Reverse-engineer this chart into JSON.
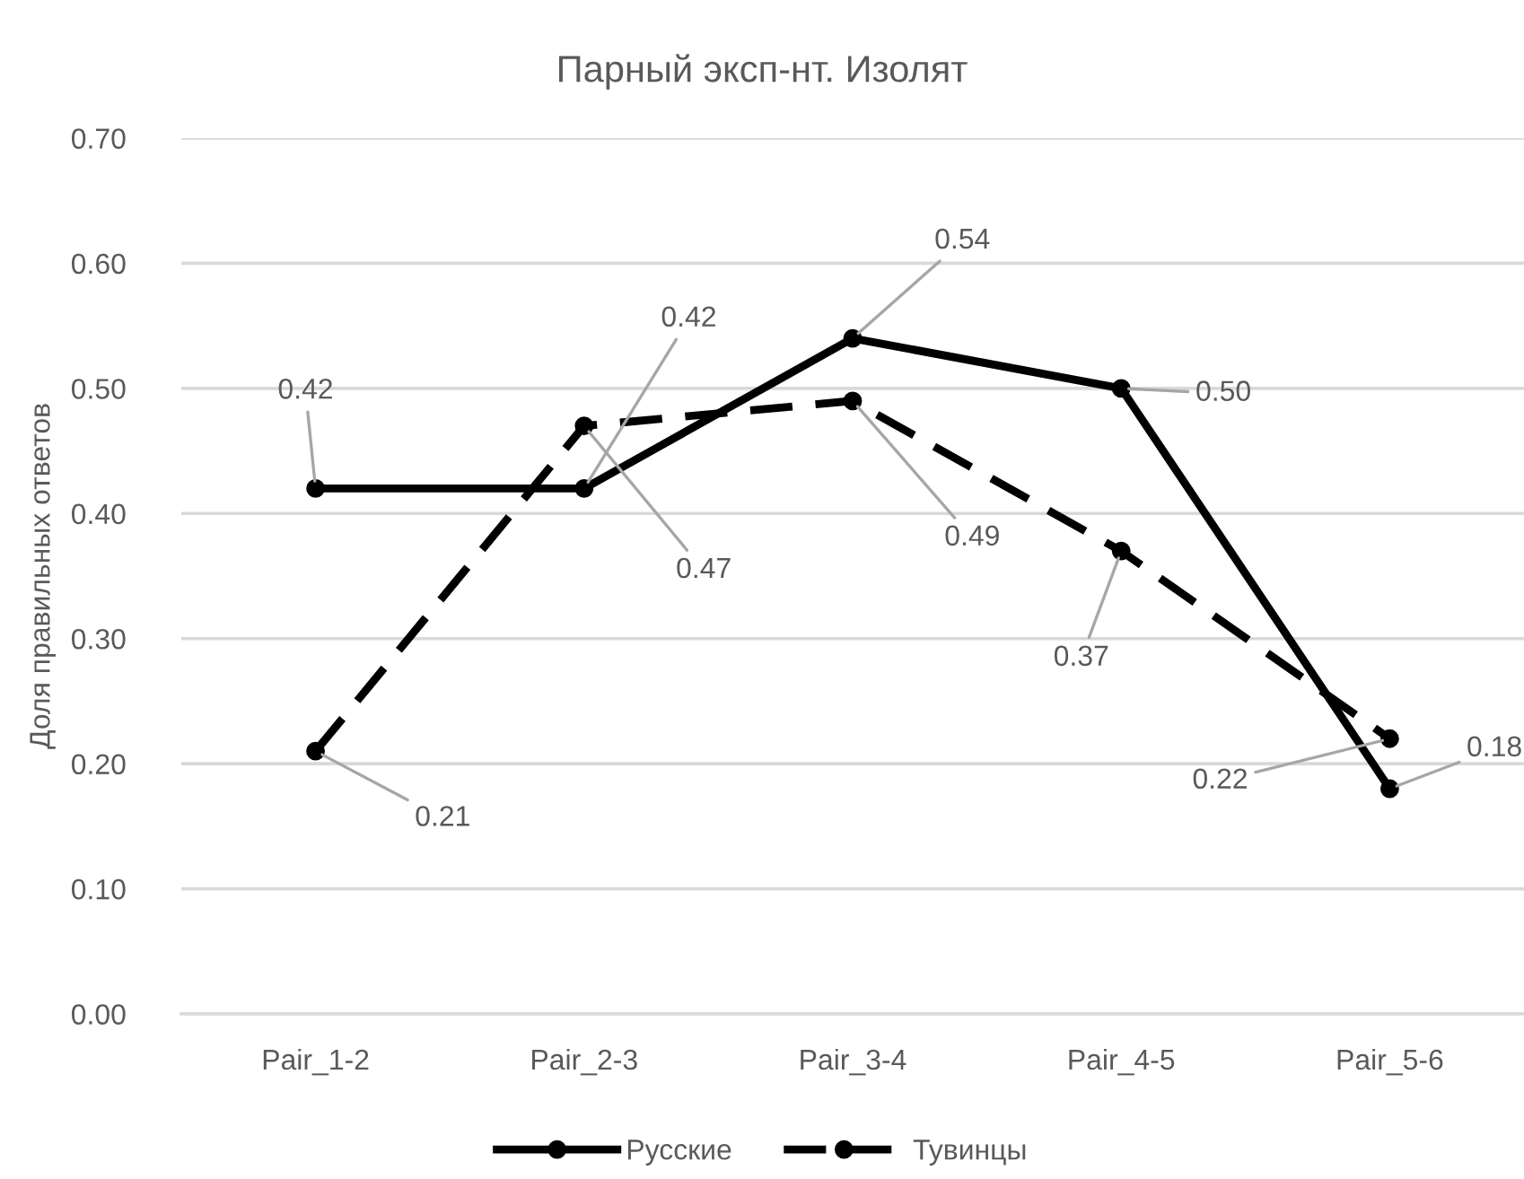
{
  "chart_data": {
    "type": "line",
    "title": "Парный эксп-нт. Изолят",
    "ylabel": "Доля правильных ответов",
    "categories": [
      "Pair_1-2",
      "Pair_2-3",
      "Pair_3-4",
      "Pair_4-5",
      "Pair_5-6"
    ],
    "series": [
      {
        "name": "Русские",
        "color": "#000000",
        "line_style": "solid",
        "values": [
          0.42,
          0.42,
          0.54,
          0.5,
          0.18
        ],
        "value_labels": [
          "0.42",
          "0.42",
          "0.54",
          "0.50",
          "0.18"
        ]
      },
      {
        "name": "Тувинцы",
        "color": "#000000",
        "line_style": "dashed",
        "values": [
          0.21,
          0.47,
          0.49,
          0.37,
          0.22
        ],
        "value_labels": [
          "0.21",
          "0.47",
          "0.49",
          "0.37",
          "0.22"
        ]
      }
    ],
    "ylim": [
      0,
      0.7
    ],
    "yticks": [
      {
        "value": 0,
        "label": "0.00"
      },
      {
        "value": 0.1,
        "label": "0.10"
      },
      {
        "value": 0.2,
        "label": "0.20"
      },
      {
        "value": 0.3,
        "label": "0.30"
      },
      {
        "value": 0.4,
        "label": "0.40"
      },
      {
        "value": 0.5,
        "label": "0.50"
      },
      {
        "value": 0.6,
        "label": "0.60"
      },
      {
        "value": 0.7,
        "label": "0.70"
      }
    ],
    "grid": "y",
    "legend": "bottom",
    "marker": "circle"
  }
}
